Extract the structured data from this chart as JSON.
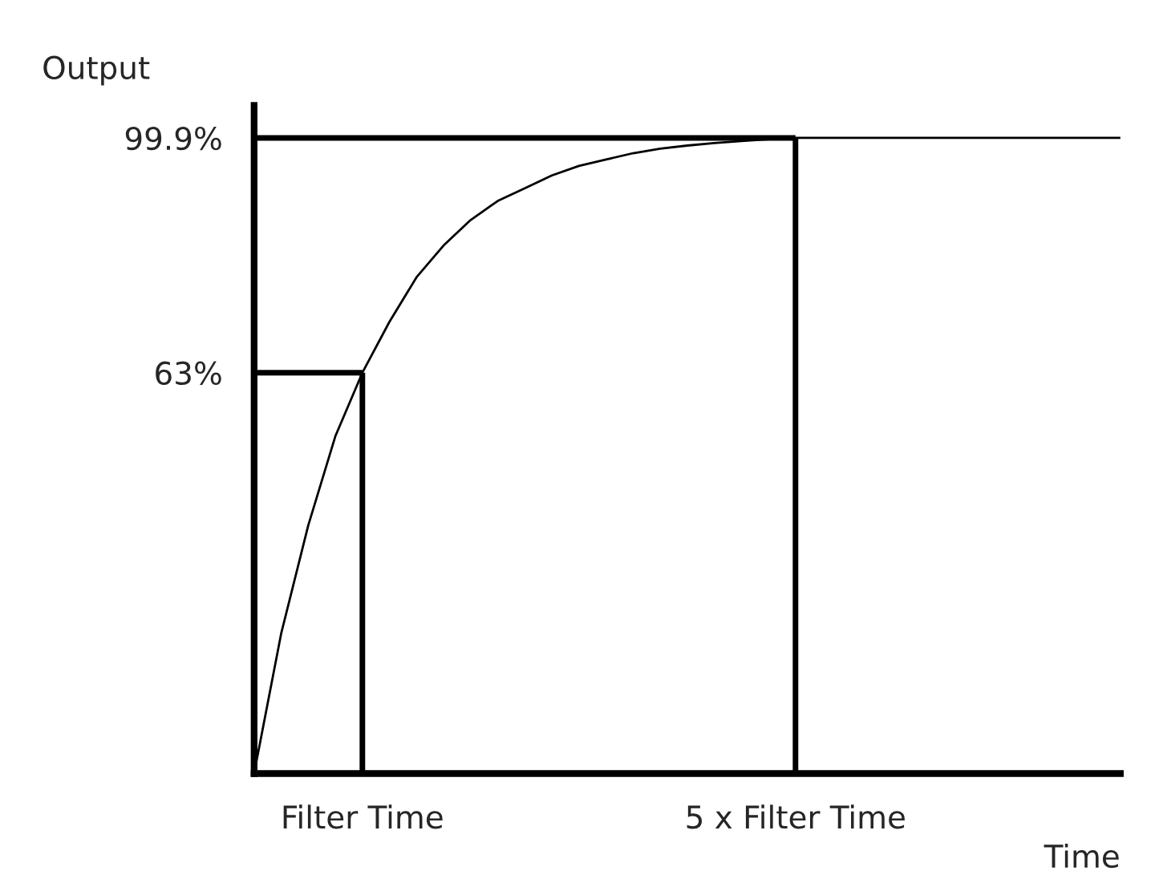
{
  "chart_data": {
    "type": "line",
    "xlabel": "Time",
    "ylabel": "Output",
    "categories": [
      null,
      null,
      null,
      null,
      "Filter Time",
      null,
      null,
      null,
      null,
      null,
      null,
      null,
      null,
      null,
      null,
      null,
      null,
      null,
      null,
      null,
      "5 x Filter Time",
      null,
      null,
      null,
      null,
      null,
      null,
      null,
      null,
      null,
      null,
      null,
      null
    ],
    "ylim": [
      0,
      105
    ],
    "yticks": [
      {
        "value": 63,
        "label": "63%"
      },
      {
        "value": 99.9,
        "label": "99.9%"
      }
    ],
    "grid": false,
    "legend": false,
    "ref_lines": [
      {
        "axis": "y",
        "value": 63,
        "color": "#000000"
      },
      {
        "axis": "x",
        "value": "Filter Time",
        "color": "#000000"
      },
      {
        "axis": "y",
        "value": 99.9,
        "color": "#000000"
      },
      {
        "axis": "x",
        "value": "5 x Filter Time",
        "color": "#000000"
      }
    ],
    "series": [
      {
        "color": "#000000",
        "values": [
          0,
          22,
          39,
          53,
          63,
          71,
          78,
          83,
          87,
          90,
          92,
          94,
          95.5,
          96.5,
          97.5,
          98.2,
          98.7,
          99.1,
          99.4,
          99.7,
          99.9,
          99.9,
          99.9,
          99.9,
          99.9,
          99.9,
          99.9,
          99.9,
          99.9,
          99.9,
          99.9,
          99.9,
          99.9
        ]
      }
    ]
  }
}
